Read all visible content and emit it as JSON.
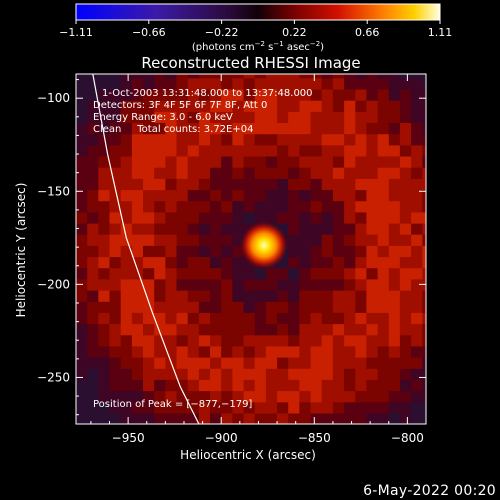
{
  "colorbar": {
    "ticks": [
      "−1.11",
      "−0.66",
      "−0.22",
      "0.22",
      "0.66",
      "1.11"
    ],
    "unit_main": "(photons cm",
    "unit_sup1": "−2",
    "unit_mid1": " s",
    "unit_sup2": "−1",
    "unit_mid2": " asec",
    "unit_sup3": "−2",
    "unit_end": ")"
  },
  "chart_data": {
    "type": "heatmap",
    "title": "Reconstructed RHESSI Image",
    "xlabel": "Heliocentric X (arcsec)",
    "ylabel": "Heliocentric Y (arcsec)",
    "xlim": [
      -978,
      -790
    ],
    "ylim": [
      -275,
      -87
    ],
    "x_ticks": [
      -950,
      -900,
      -850,
      -800
    ],
    "x_tick_labels": [
      "−950",
      "−900",
      "−850",
      "−800"
    ],
    "y_ticks": [
      -100,
      -150,
      -200,
      -250
    ],
    "y_tick_labels": [
      "−100",
      "−150",
      "−200",
      "−250"
    ],
    "color_range": [
      -1.11,
      1.11
    ],
    "peak": [
      -877,
      -179
    ],
    "ring": {
      "center": [
        -877,
        -179
      ],
      "radius": 72
    },
    "limb_curve": [
      [
        -969,
        -87
      ],
      [
        -961,
        -130
      ],
      [
        -951,
        -175
      ],
      [
        -937,
        -215
      ],
      [
        -922,
        -255
      ],
      [
        -912,
        -275
      ]
    ],
    "annotations": [
      "1-Oct-2003 13:31:48.000 to 13:37:48.000",
      "Detectors: 3F 4F 5F 6F 7F 8F, Att 0",
      "Energy Range: 3.0 - 6.0 keV",
      "Clean     Total counts: 3.72E+04"
    ],
    "peak_label": "Position of Peak = [−877,−179]",
    "colors": {
      "colormap": "rhessi-heat",
      "limb": "#ffffff"
    }
  },
  "footer_date": "6-May-2022 00:20"
}
